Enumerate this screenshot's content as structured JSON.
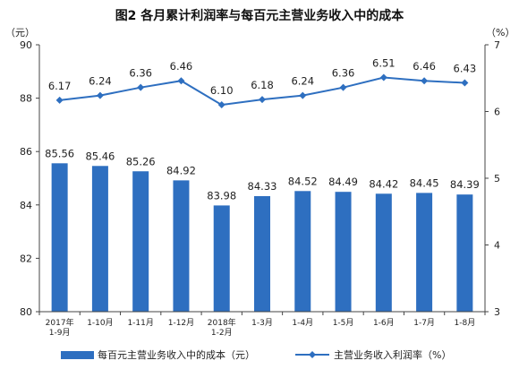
{
  "chart_data": {
    "type": "bar",
    "title": "图2  各月累计利润率与每百元主营业务收入中的成本",
    "left_axis_unit": "（元）",
    "right_axis_unit": "（%）",
    "categories": [
      [
        "2017年",
        "1-9月"
      ],
      [
        "1-10月"
      ],
      [
        "1-11月"
      ],
      [
        "1-12月"
      ],
      [
        "2018年",
        "1-2月"
      ],
      [
        "1-3月"
      ],
      [
        "1-4月"
      ],
      [
        "1-5月"
      ],
      [
        "1-6月"
      ],
      [
        "1-7月"
      ],
      [
        "1-8月"
      ]
    ],
    "left_axis": {
      "min": 80,
      "max": 90,
      "ticks": [
        80,
        82,
        84,
        86,
        88,
        90
      ]
    },
    "right_axis": {
      "min": 3,
      "max": 7,
      "ticks": [
        3,
        4,
        5,
        6,
        7
      ]
    },
    "series": [
      {
        "name": "每百元主营业务收入中的成本（元）",
        "type": "bar",
        "axis": "left",
        "color": "#2e6fc0",
        "labels": [
          "85.56",
          "85.46",
          "85.26",
          "84.92",
          "83.98",
          "84.33",
          "84.52",
          "84.49",
          "84.42",
          "84.45",
          "84.39"
        ],
        "values": [
          85.56,
          85.46,
          85.26,
          84.92,
          83.98,
          84.33,
          84.52,
          84.49,
          84.42,
          84.45,
          84.39
        ]
      },
      {
        "name": "主营业务收入利润率（%）",
        "type": "line",
        "axis": "right",
        "color": "#2e6fc0",
        "labels": [
          "6.17",
          "6.24",
          "6.36",
          "6.46",
          "6.10",
          "6.18",
          "6.24",
          "6.36",
          "6.51",
          "6.46",
          "6.43"
        ],
        "values": [
          6.17,
          6.24,
          6.36,
          6.46,
          6.1,
          6.18,
          6.24,
          6.36,
          6.51,
          6.46,
          6.43
        ]
      }
    ],
    "grid": false,
    "legend_position": "bottom"
  }
}
